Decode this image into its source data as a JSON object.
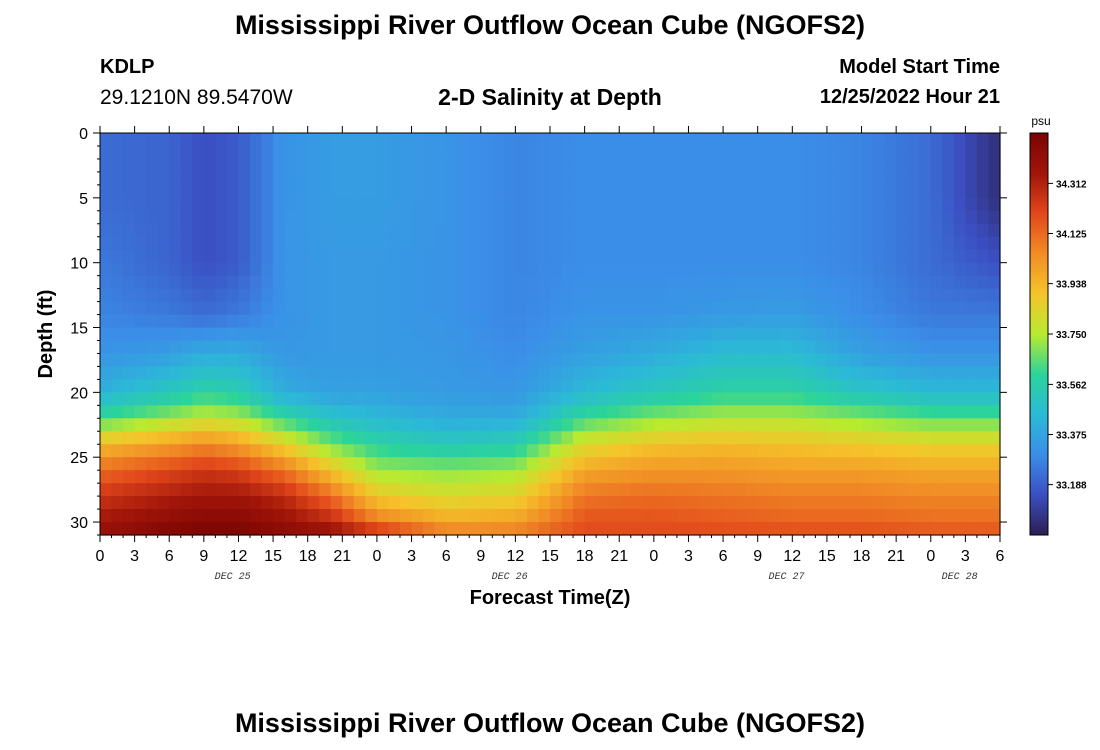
{
  "header": {
    "title": "Mississippi River Outflow Ocean Cube (NGOFS2)",
    "station": "KDLP",
    "coords": "29.1210N  89.5470W",
    "subtitle": "2-D Salinity at Depth",
    "model_start_label": "Model Start Time",
    "model_start_time": "12/25/2022 Hour 21"
  },
  "footer": {
    "title": "Mississippi River Outflow Ocean Cube (NGOFS2)"
  },
  "chart_data": {
    "type": "heatmap",
    "title": "2-D Salinity at Depth",
    "xlabel": "Forecast Time(Z)",
    "ylabel": "Depth (ft)",
    "x_tick_labels": [
      "0",
      "3",
      "6",
      "9",
      "12",
      "15",
      "18",
      "21",
      "0",
      "3",
      "6",
      "9",
      "12",
      "15",
      "18",
      "21",
      "0",
      "3",
      "6",
      "9",
      "12",
      "15",
      "18",
      "21",
      "0",
      "3",
      "6"
    ],
    "x_range_hours": [
      0,
      78
    ],
    "day_labels": [
      {
        "label": "DEC 25",
        "hour": 11.5
      },
      {
        "label": "DEC 26",
        "hour": 35.5
      },
      {
        "label": "DEC 27",
        "hour": 59.5
      },
      {
        "label": "DEC 28",
        "hour": 74.5
      }
    ],
    "y_ticks": [
      0,
      5,
      10,
      15,
      20,
      25,
      30
    ],
    "y_range": [
      0,
      31
    ],
    "y_inverted": true,
    "colorbar": {
      "unit": "psu",
      "ticks": [
        33.188,
        33.375,
        33.562,
        33.75,
        33.938,
        34.125,
        34.312
      ],
      "range": [
        33.0,
        34.5
      ],
      "colors": [
        "#2c1e50",
        "#3b4fc2",
        "#3b8ee8",
        "#2bbad6",
        "#2bd49a",
        "#b9ea30",
        "#f5c42a",
        "#f18c26",
        "#e2471b",
        "#a01509",
        "#7a0403"
      ]
    },
    "salinity_profiles": {
      "description_keys": "hour -> salinity at depths (ft)",
      "depths": [
        0,
        5,
        10,
        14,
        17,
        20,
        22,
        24,
        26,
        28,
        30,
        31
      ],
      "profiles": [
        {
          "hour": 0,
          "values": [
            33.22,
            33.22,
            33.25,
            33.28,
            33.32,
            33.42,
            33.62,
            33.92,
            34.12,
            34.25,
            34.35,
            34.4
          ]
        },
        {
          "hour": 6,
          "values": [
            33.2,
            33.2,
            33.2,
            33.25,
            33.35,
            33.52,
            33.72,
            34.0,
            34.2,
            34.32,
            34.42,
            34.48
          ]
        },
        {
          "hour": 9,
          "values": [
            33.15,
            33.15,
            33.15,
            33.22,
            33.4,
            33.58,
            33.78,
            34.05,
            34.25,
            34.35,
            34.45,
            34.5
          ]
        },
        {
          "hour": 12,
          "values": [
            33.18,
            33.18,
            33.18,
            33.25,
            33.4,
            33.55,
            33.75,
            34.0,
            34.22,
            34.35,
            34.45,
            34.5
          ]
        },
        {
          "hour": 16,
          "values": [
            33.32,
            33.32,
            33.32,
            33.32,
            33.33,
            33.4,
            33.6,
            33.85,
            34.1,
            34.28,
            34.38,
            34.45
          ]
        },
        {
          "hour": 20,
          "values": [
            33.35,
            33.35,
            33.34,
            33.34,
            33.34,
            33.36,
            33.5,
            33.68,
            33.9,
            34.12,
            34.3,
            34.4
          ]
        },
        {
          "hour": 24,
          "values": [
            33.35,
            33.35,
            33.34,
            33.34,
            33.34,
            33.36,
            33.45,
            33.58,
            33.72,
            33.88,
            34.1,
            34.3
          ]
        },
        {
          "hour": 30,
          "values": [
            33.32,
            33.32,
            33.32,
            33.32,
            33.33,
            33.34,
            33.4,
            33.52,
            33.7,
            33.82,
            33.98,
            34.1
          ]
        },
        {
          "hour": 36,
          "values": [
            33.28,
            33.28,
            33.28,
            33.28,
            33.3,
            33.33,
            33.4,
            33.55,
            33.72,
            33.85,
            34.0,
            34.1
          ]
        },
        {
          "hour": 42,
          "values": [
            33.3,
            33.3,
            33.3,
            33.32,
            33.36,
            33.45,
            33.62,
            33.82,
            33.98,
            34.1,
            34.18,
            34.2
          ]
        },
        {
          "hour": 48,
          "values": [
            33.3,
            33.3,
            33.3,
            33.32,
            33.4,
            33.52,
            33.7,
            33.9,
            34.02,
            34.12,
            34.18,
            34.2
          ]
        },
        {
          "hour": 54,
          "values": [
            33.3,
            33.3,
            33.3,
            33.34,
            33.46,
            33.58,
            33.75,
            33.92,
            34.02,
            34.1,
            34.16,
            34.2
          ]
        },
        {
          "hour": 60,
          "values": [
            33.3,
            33.3,
            33.3,
            33.35,
            33.46,
            33.58,
            33.75,
            33.9,
            34.0,
            34.08,
            34.14,
            34.2
          ]
        },
        {
          "hour": 66,
          "values": [
            33.28,
            33.28,
            33.28,
            33.3,
            33.36,
            33.5,
            33.7,
            33.88,
            34.0,
            34.08,
            34.14,
            34.2
          ]
        },
        {
          "hour": 72,
          "values": [
            33.22,
            33.22,
            33.22,
            33.25,
            33.32,
            33.45,
            33.65,
            33.85,
            33.98,
            34.06,
            34.12,
            34.18
          ]
        },
        {
          "hour": 78,
          "values": [
            33.05,
            33.05,
            33.15,
            33.25,
            33.32,
            33.45,
            33.65,
            33.85,
            33.98,
            34.06,
            34.12,
            34.18
          ]
        }
      ]
    }
  }
}
